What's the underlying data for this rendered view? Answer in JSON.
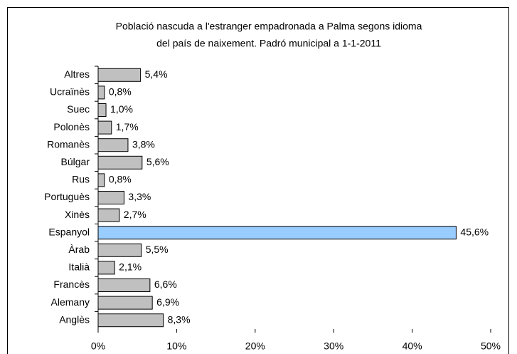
{
  "chart_data": {
    "type": "hbar",
    "title": [
      "Població nascuda a l'estranger empadronada a Palma segons idioma",
      "del país de naixement. Padró municipal a 1-1-2011"
    ],
    "categories": [
      "Altres",
      "Ucraïnès",
      "Suec",
      "Polonès",
      "Romanès",
      "Búlgar",
      "Rus",
      "Portuguès",
      "Xinès",
      "Espanyol",
      "Àrab",
      "Italià",
      "Francès",
      "Alemany",
      "Anglès"
    ],
    "values": [
      5.4,
      0.8,
      1.0,
      1.7,
      3.8,
      5.6,
      0.8,
      3.3,
      2.7,
      45.6,
      5.5,
      2.1,
      6.6,
      6.9,
      8.3
    ],
    "value_labels": [
      "5,4%",
      "0,8%",
      "1,0%",
      "1,7%",
      "3,8%",
      "5,6%",
      "0,8%",
      "3,3%",
      "2,7%",
      "45,6%",
      "5,5%",
      "2,1%",
      "6,6%",
      "6,9%",
      "8,3%"
    ],
    "colors": [
      "#c0c0c0",
      "#c0c0c0",
      "#c0c0c0",
      "#c0c0c0",
      "#c0c0c0",
      "#c0c0c0",
      "#c0c0c0",
      "#c0c0c0",
      "#c0c0c0",
      "#99ccff",
      "#c0c0c0",
      "#c0c0c0",
      "#c0c0c0",
      "#c0c0c0",
      "#c0c0c0"
    ],
    "xlim": [
      0,
      50
    ],
    "xticks": [
      {
        "value": 0,
        "label": "0%"
      },
      {
        "value": 10,
        "label": "10%"
      },
      {
        "value": 20,
        "label": "20%"
      },
      {
        "value": 30,
        "label": "30%"
      },
      {
        "value": 40,
        "label": "40%"
      },
      {
        "value": 50,
        "label": "50%"
      }
    ]
  }
}
